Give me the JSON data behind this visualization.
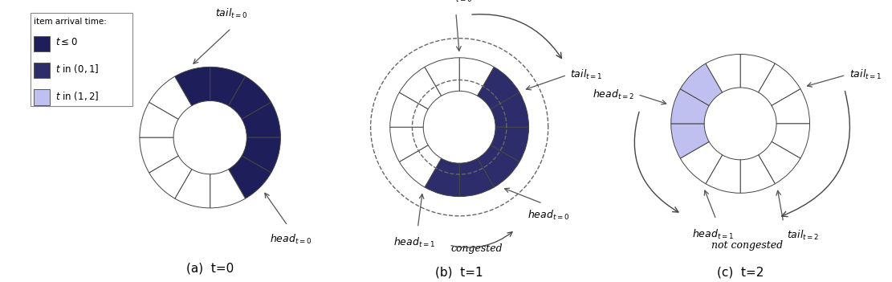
{
  "color_dark1": "#1e1e5a",
  "color_dark2": "#2d2d6b",
  "color_light_purple": "#c0c0f0",
  "color_empty": "#ffffff",
  "color_edge": "#444444",
  "n_slots": 12,
  "subtitle_a": "(a)  t=0",
  "subtitle_b": "(b)  t=1",
  "subtitle_c": "(c)  t=2",
  "panel_a_dark_slots": [
    0,
    1,
    2,
    3,
    4
  ],
  "panel_b_dark_slots": [
    1,
    2,
    3,
    4,
    5,
    6
  ],
  "panel_c_light_slots": [
    8,
    9,
    10
  ]
}
